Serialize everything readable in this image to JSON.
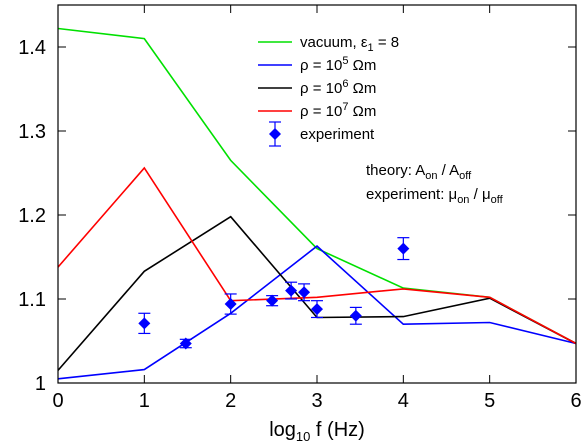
{
  "chart_data": {
    "type": "line",
    "title": "",
    "xlabel": {
      "base": "log",
      "sub": "10",
      "rest": " f  (Hz)"
    },
    "ylabel": "",
    "xlim": [
      0,
      6
    ],
    "ylim": [
      1.0,
      1.45
    ],
    "xticks": [
      "0",
      "1",
      "2",
      "3",
      "4",
      "5",
      "6"
    ],
    "yticks": [
      {
        "value": 1.0,
        "label": "1"
      },
      {
        "value": 1.1,
        "label": "1.1"
      },
      {
        "value": 1.2,
        "label": "1.2"
      },
      {
        "value": 1.3,
        "label": "1.3"
      },
      {
        "value": 1.4,
        "label": "1.4"
      }
    ],
    "grid": false,
    "legend_position": "top-right",
    "series": [
      {
        "name": "vacuum, ε₁ = 8",
        "legend": {
          "pre": "vacuum, ε",
          "sub": "1",
          "post": " = 8"
        },
        "color": "#00e000",
        "x": [
          0,
          1,
          2,
          3,
          4,
          5,
          6
        ],
        "y": [
          1.422,
          1.41,
          1.265,
          1.16,
          1.113,
          1.102,
          1.047
        ]
      },
      {
        "name": "ρ = 10⁵ Ωm",
        "legend": {
          "pre": "ρ = 10",
          "sup": "5",
          "post": " Ωm"
        },
        "color": "#0000ff",
        "x": [
          0,
          1,
          2,
          3,
          4,
          5,
          6
        ],
        "y": [
          1.005,
          1.016,
          1.083,
          1.163,
          1.07,
          1.072,
          1.047
        ]
      },
      {
        "name": "ρ = 10⁶ Ωm",
        "legend": {
          "pre": "ρ = 10",
          "sup": "6",
          "post": " Ωm"
        },
        "color": "#000000",
        "x": [
          0,
          1,
          2,
          3,
          4,
          5,
          6
        ],
        "y": [
          1.015,
          1.133,
          1.198,
          1.078,
          1.079,
          1.101,
          1.047
        ]
      },
      {
        "name": "ρ = 10⁷ Ωm",
        "legend": {
          "pre": "ρ = 10",
          "sup": "7",
          "post": " Ωm"
        },
        "color": "#ff0000",
        "x": [
          0,
          1,
          2,
          3,
          4,
          5,
          6
        ],
        "y": [
          1.138,
          1.256,
          1.098,
          1.102,
          1.112,
          1.102,
          1.047
        ]
      }
    ],
    "experiment": {
      "name": "experiment",
      "color": "#0000ff",
      "x": [
        1.0,
        1.48,
        2.0,
        2.48,
        2.7,
        2.85,
        3.0,
        3.45,
        4.0
      ],
      "y": [
        1.071,
        1.047,
        1.094,
        1.098,
        1.11,
        1.108,
        1.088,
        1.08,
        1.16
      ],
      "err": [
        0.012,
        0.005,
        0.012,
        0.006,
        0.01,
        0.01,
        0.01,
        0.01,
        0.013
      ]
    },
    "annotations": [
      {
        "id": "theory",
        "parts": [
          {
            "t": "theory: A"
          },
          {
            "sub": "on"
          },
          {
            "t": " / A"
          },
          {
            "sub": "off"
          }
        ]
      },
      {
        "id": "experiment",
        "parts": [
          {
            "t": "experiment: μ"
          },
          {
            "sub": "on"
          },
          {
            "t": " / μ"
          },
          {
            "sub": "off"
          }
        ]
      }
    ]
  }
}
